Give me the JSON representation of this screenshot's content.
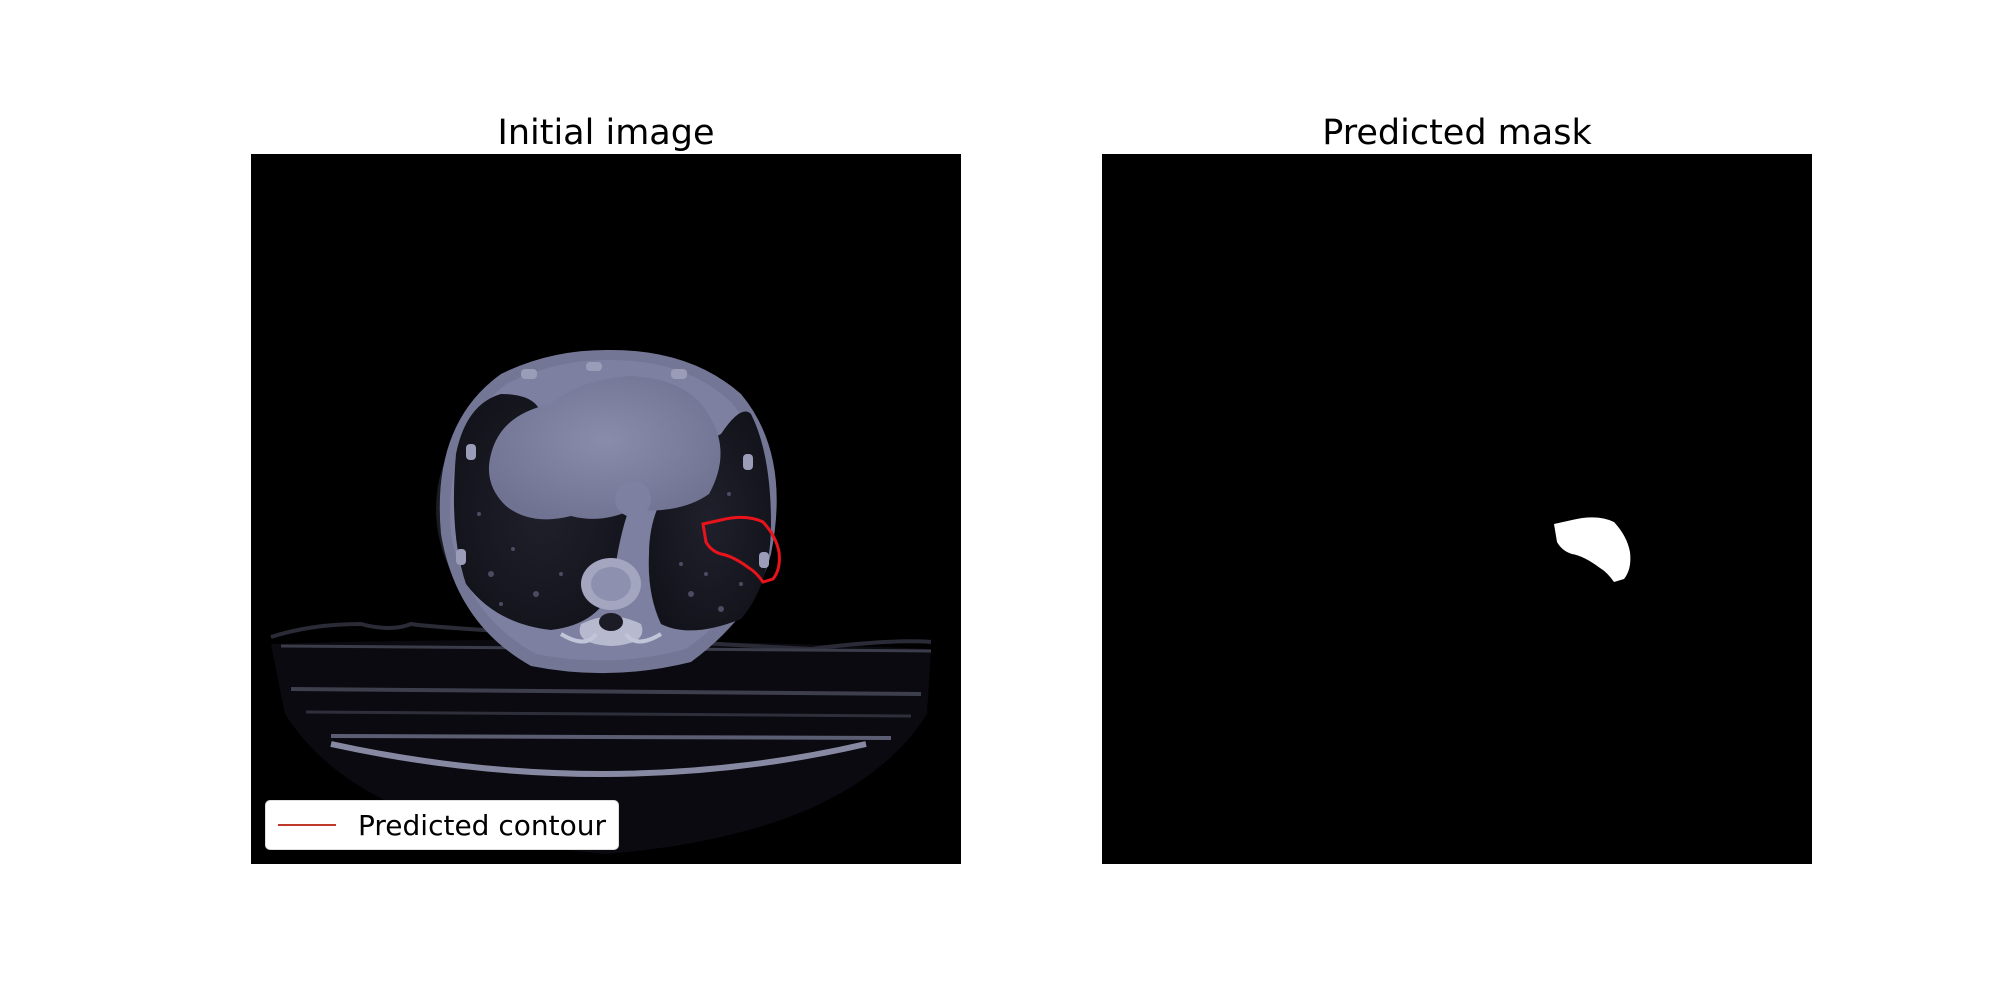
{
  "panels": {
    "left": {
      "title": "Initial image",
      "legend_label": "Predicted contour"
    },
    "right": {
      "title": "Predicted mask"
    }
  },
  "colors": {
    "contour": "#e8131b",
    "legend_line": "#c0392b",
    "tissue": "#7c7f9e",
    "background": "#000000",
    "mask": "#ffffff"
  }
}
